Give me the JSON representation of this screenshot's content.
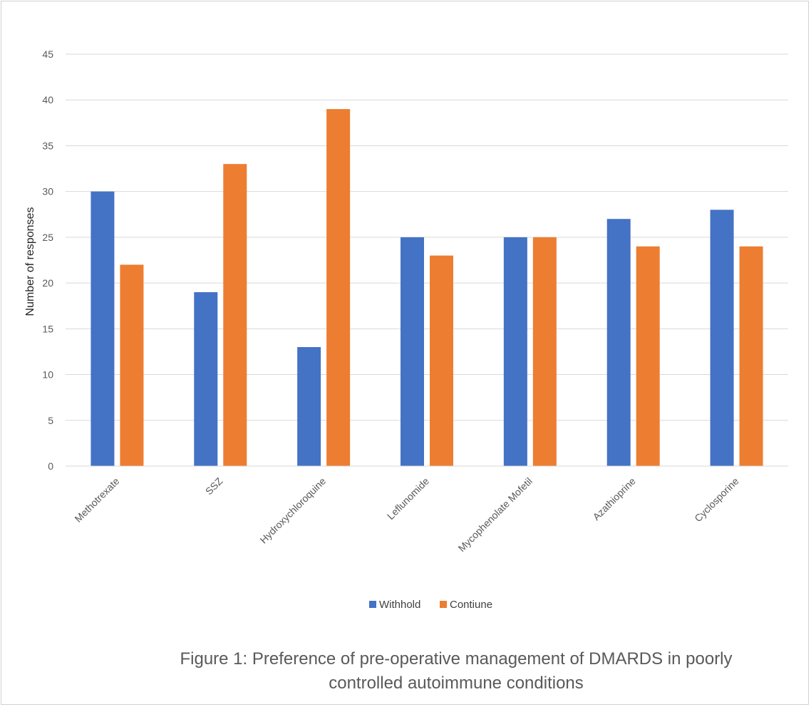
{
  "chart_data": {
    "type": "bar",
    "title": "",
    "xlabel": "",
    "ylabel": "Number of responses",
    "ylim": [
      0,
      45
    ],
    "yticks": [
      0,
      5,
      10,
      15,
      20,
      25,
      30,
      35,
      40,
      45
    ],
    "grid": true,
    "legend_position": "bottom",
    "categories": [
      "Methotrexate",
      "SSZ",
      "Hydroxychloroquine",
      "Leflunomide",
      "Mycophenolate Mofetil",
      "Azathioprine",
      "Cyclosporine"
    ],
    "series": [
      {
        "name": "Withhold",
        "color": "#4472C4",
        "values": [
          30,
          19,
          13,
          25,
          25,
          27,
          28
        ]
      },
      {
        "name": "Contiune",
        "color": "#ED7D31",
        "values": [
          22,
          33,
          39,
          23,
          25,
          24,
          24
        ]
      }
    ]
  },
  "caption": {
    "line1": "Figure 1: Preference of pre-operative management of DMARDS in poorly",
    "line2": "controlled autoimmune conditions"
  }
}
